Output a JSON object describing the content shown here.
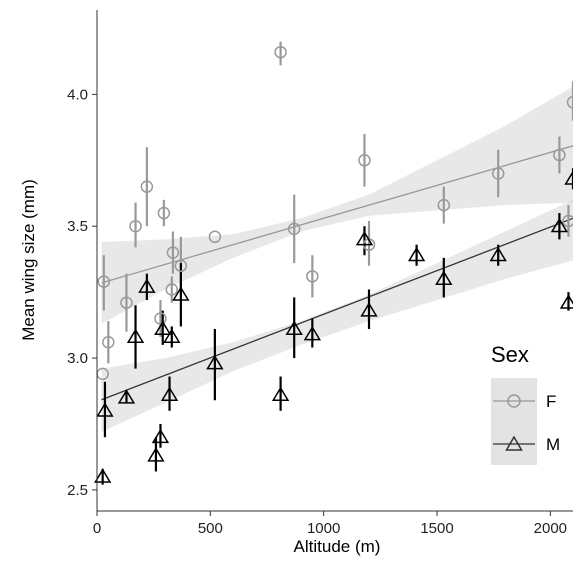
{
  "chart_data": {
    "type": "scatter",
    "title": "",
    "xlabel": "Altitude (m)",
    "ylabel": "Mean wing size (mm)",
    "xlim": [
      0,
      2100
    ],
    "ylim": [
      2.42,
      4.32
    ],
    "xticks": [
      0,
      500,
      1000,
      1500,
      2000
    ],
    "yticks": [
      2.5,
      3.0,
      3.5,
      4.0
    ],
    "xtick_labels": [
      "0",
      "500",
      "1000",
      "1500",
      "2000"
    ],
    "ytick_labels": [
      "2.5",
      "3.0",
      "3.5",
      "4.0"
    ],
    "grid": false,
    "legend": {
      "title": "Sex",
      "position": "right",
      "entries": [
        "F",
        "M"
      ]
    },
    "series": [
      {
        "name": "F",
        "marker": "circle",
        "color": "#999999",
        "fit": {
          "x": [
            20,
            2100
          ],
          "y": [
            3.285,
            3.805
          ]
        },
        "band": {
          "x": [
            20,
            300,
            600,
            900,
            1200,
            1500,
            1800,
            2100
          ],
          "lower": [
            3.13,
            3.26,
            3.38,
            3.48,
            3.54,
            3.56,
            3.58,
            3.59
          ],
          "upper": [
            3.44,
            3.45,
            3.47,
            3.53,
            3.62,
            3.75,
            3.88,
            4.03
          ]
        },
        "points": [
          {
            "x": 25,
            "y": 2.94,
            "lo": 2.94,
            "hi": 2.94
          },
          {
            "x": 30,
            "y": 3.29,
            "lo": 3.18,
            "hi": 3.39
          },
          {
            "x": 50,
            "y": 3.06,
            "lo": 2.98,
            "hi": 3.14
          },
          {
            "x": 130,
            "y": 3.21,
            "lo": 3.1,
            "hi": 3.32
          },
          {
            "x": 170,
            "y": 3.5,
            "lo": 3.42,
            "hi": 3.59
          },
          {
            "x": 220,
            "y": 3.65,
            "lo": 3.5,
            "hi": 3.8
          },
          {
            "x": 280,
            "y": 3.15,
            "lo": 3.08,
            "hi": 3.22
          },
          {
            "x": 295,
            "y": 3.55,
            "lo": 3.5,
            "hi": 3.6
          },
          {
            "x": 330,
            "y": 3.26,
            "lo": 3.21,
            "hi": 3.31
          },
          {
            "x": 335,
            "y": 3.4,
            "lo": 3.32,
            "hi": 3.48
          },
          {
            "x": 370,
            "y": 3.35,
            "lo": 3.24,
            "hi": 3.46
          },
          {
            "x": 520,
            "y": 3.46,
            "lo": 3.46,
            "hi": 3.46
          },
          {
            "x": 810,
            "y": 4.16,
            "lo": 4.11,
            "hi": 4.2
          },
          {
            "x": 870,
            "y": 3.49,
            "lo": 3.36,
            "hi": 3.62
          },
          {
            "x": 950,
            "y": 3.31,
            "lo": 3.23,
            "hi": 3.39
          },
          {
            "x": 1180,
            "y": 3.75,
            "lo": 3.65,
            "hi": 3.85
          },
          {
            "x": 1200,
            "y": 3.43,
            "lo": 3.35,
            "hi": 3.52
          },
          {
            "x": 1530,
            "y": 3.58,
            "lo": 3.51,
            "hi": 3.65
          },
          {
            "x": 1770,
            "y": 3.7,
            "lo": 3.61,
            "hi": 3.79
          },
          {
            "x": 2040,
            "y": 3.77,
            "lo": 3.7,
            "hi": 3.84
          },
          {
            "x": 2080,
            "y": 3.52,
            "lo": 3.46,
            "hi": 3.58
          },
          {
            "x": 2100,
            "y": 3.97,
            "lo": 3.9,
            "hi": 4.05
          }
        ]
      },
      {
        "name": "M",
        "marker": "triangle",
        "color": "#000000",
        "fit": {
          "x": [
            20,
            2100
          ],
          "y": [
            2.842,
            3.53
          ]
        },
        "band": {
          "x": [
            20,
            300,
            600,
            900,
            1200,
            1500,
            1800,
            2100
          ],
          "lower": [
            2.72,
            2.83,
            2.95,
            3.05,
            3.14,
            3.22,
            3.3,
            3.37
          ],
          "upper": [
            2.96,
            3.0,
            3.06,
            3.14,
            3.24,
            3.36,
            3.48,
            3.6
          ]
        },
        "points": [
          {
            "x": 25,
            "y": 2.55,
            "lo": 2.52,
            "hi": 2.58
          },
          {
            "x": 35,
            "y": 2.8,
            "lo": 2.7,
            "hi": 2.91
          },
          {
            "x": 130,
            "y": 2.85,
            "lo": 2.83,
            "hi": 2.87
          },
          {
            "x": 170,
            "y": 3.08,
            "lo": 2.96,
            "hi": 3.2
          },
          {
            "x": 220,
            "y": 3.27,
            "lo": 3.22,
            "hi": 3.32
          },
          {
            "x": 260,
            "y": 2.63,
            "lo": 2.57,
            "hi": 2.7
          },
          {
            "x": 280,
            "y": 2.7,
            "lo": 2.66,
            "hi": 2.75
          },
          {
            "x": 290,
            "y": 3.11,
            "lo": 3.05,
            "hi": 3.18
          },
          {
            "x": 320,
            "y": 2.86,
            "lo": 2.8,
            "hi": 2.93
          },
          {
            "x": 330,
            "y": 3.08,
            "lo": 3.04,
            "hi": 3.12
          },
          {
            "x": 370,
            "y": 3.24,
            "lo": 3.12,
            "hi": 3.36
          },
          {
            "x": 520,
            "y": 2.98,
            "lo": 2.84,
            "hi": 3.11
          },
          {
            "x": 810,
            "y": 2.86,
            "lo": 2.8,
            "hi": 2.93
          },
          {
            "x": 870,
            "y": 3.11,
            "lo": 3.0,
            "hi": 3.23
          },
          {
            "x": 950,
            "y": 3.09,
            "lo": 3.04,
            "hi": 3.15
          },
          {
            "x": 1180,
            "y": 3.45,
            "lo": 3.39,
            "hi": 3.5
          },
          {
            "x": 1200,
            "y": 3.18,
            "lo": 3.11,
            "hi": 3.26
          },
          {
            "x": 1410,
            "y": 3.39,
            "lo": 3.35,
            "hi": 3.43
          },
          {
            "x": 1530,
            "y": 3.3,
            "lo": 3.23,
            "hi": 3.38
          },
          {
            "x": 1770,
            "y": 3.39,
            "lo": 3.35,
            "hi": 3.43
          },
          {
            "x": 2040,
            "y": 3.5,
            "lo": 3.45,
            "hi": 3.55
          },
          {
            "x": 2080,
            "y": 3.21,
            "lo": 3.18,
            "hi": 3.25
          },
          {
            "x": 2100,
            "y": 3.68,
            "lo": 3.64,
            "hi": 3.72
          }
        ]
      }
    ]
  }
}
